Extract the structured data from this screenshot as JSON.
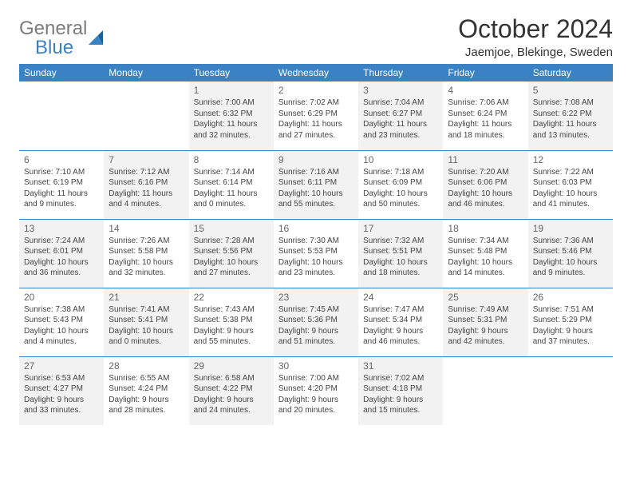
{
  "logo": {
    "general": "General",
    "blue": "Blue",
    "accent_color": "#3b82c4",
    "gray_color": "#7b7b7b"
  },
  "header": {
    "title": "October 2024",
    "location": "Jaemjoe, Blekinge, Sweden"
  },
  "colors": {
    "header_bg": "#3b82c4",
    "header_text": "#ffffff",
    "rule": "#3b82c4",
    "shaded_bg": "#f2f2f2",
    "body_text": "#444444",
    "daynum_text": "#666666"
  },
  "daysOfWeek": [
    "Sunday",
    "Monday",
    "Tuesday",
    "Wednesday",
    "Thursday",
    "Friday",
    "Saturday"
  ],
  "weeks": [
    [
      {
        "day": null
      },
      {
        "day": null
      },
      {
        "day": 1,
        "shaded": true,
        "sunrise": "7:00 AM",
        "sunset": "6:32 PM",
        "daylight": "11 hours and 32 minutes."
      },
      {
        "day": 2,
        "sunrise": "7:02 AM",
        "sunset": "6:29 PM",
        "daylight": "11 hours and 27 minutes."
      },
      {
        "day": 3,
        "shaded": true,
        "sunrise": "7:04 AM",
        "sunset": "6:27 PM",
        "daylight": "11 hours and 23 minutes."
      },
      {
        "day": 4,
        "sunrise": "7:06 AM",
        "sunset": "6:24 PM",
        "daylight": "11 hours and 18 minutes."
      },
      {
        "day": 5,
        "shaded": true,
        "sunrise": "7:08 AM",
        "sunset": "6:22 PM",
        "daylight": "11 hours and 13 minutes."
      }
    ],
    [
      {
        "day": 6,
        "sunrise": "7:10 AM",
        "sunset": "6:19 PM",
        "daylight": "11 hours and 9 minutes."
      },
      {
        "day": 7,
        "shaded": true,
        "sunrise": "7:12 AM",
        "sunset": "6:16 PM",
        "daylight": "11 hours and 4 minutes."
      },
      {
        "day": 8,
        "sunrise": "7:14 AM",
        "sunset": "6:14 PM",
        "daylight": "11 hours and 0 minutes."
      },
      {
        "day": 9,
        "shaded": true,
        "sunrise": "7:16 AM",
        "sunset": "6:11 PM",
        "daylight": "10 hours and 55 minutes."
      },
      {
        "day": 10,
        "sunrise": "7:18 AM",
        "sunset": "6:09 PM",
        "daylight": "10 hours and 50 minutes."
      },
      {
        "day": 11,
        "shaded": true,
        "sunrise": "7:20 AM",
        "sunset": "6:06 PM",
        "daylight": "10 hours and 46 minutes."
      },
      {
        "day": 12,
        "sunrise": "7:22 AM",
        "sunset": "6:03 PM",
        "daylight": "10 hours and 41 minutes."
      }
    ],
    [
      {
        "day": 13,
        "shaded": true,
        "sunrise": "7:24 AM",
        "sunset": "6:01 PM",
        "daylight": "10 hours and 36 minutes."
      },
      {
        "day": 14,
        "sunrise": "7:26 AM",
        "sunset": "5:58 PM",
        "daylight": "10 hours and 32 minutes."
      },
      {
        "day": 15,
        "shaded": true,
        "sunrise": "7:28 AM",
        "sunset": "5:56 PM",
        "daylight": "10 hours and 27 minutes."
      },
      {
        "day": 16,
        "sunrise": "7:30 AM",
        "sunset": "5:53 PM",
        "daylight": "10 hours and 23 minutes."
      },
      {
        "day": 17,
        "shaded": true,
        "sunrise": "7:32 AM",
        "sunset": "5:51 PM",
        "daylight": "10 hours and 18 minutes."
      },
      {
        "day": 18,
        "sunrise": "7:34 AM",
        "sunset": "5:48 PM",
        "daylight": "10 hours and 14 minutes."
      },
      {
        "day": 19,
        "shaded": true,
        "sunrise": "7:36 AM",
        "sunset": "5:46 PM",
        "daylight": "10 hours and 9 minutes."
      }
    ],
    [
      {
        "day": 20,
        "sunrise": "7:38 AM",
        "sunset": "5:43 PM",
        "daylight": "10 hours and 4 minutes."
      },
      {
        "day": 21,
        "shaded": true,
        "sunrise": "7:41 AM",
        "sunset": "5:41 PM",
        "daylight": "10 hours and 0 minutes."
      },
      {
        "day": 22,
        "sunrise": "7:43 AM",
        "sunset": "5:38 PM",
        "daylight": "9 hours and 55 minutes."
      },
      {
        "day": 23,
        "shaded": true,
        "sunrise": "7:45 AM",
        "sunset": "5:36 PM",
        "daylight": "9 hours and 51 minutes."
      },
      {
        "day": 24,
        "sunrise": "7:47 AM",
        "sunset": "5:34 PM",
        "daylight": "9 hours and 46 minutes."
      },
      {
        "day": 25,
        "shaded": true,
        "sunrise": "7:49 AM",
        "sunset": "5:31 PM",
        "daylight": "9 hours and 42 minutes."
      },
      {
        "day": 26,
        "sunrise": "7:51 AM",
        "sunset": "5:29 PM",
        "daylight": "9 hours and 37 minutes."
      }
    ],
    [
      {
        "day": 27,
        "shaded": true,
        "sunrise": "6:53 AM",
        "sunset": "4:27 PM",
        "daylight": "9 hours and 33 minutes."
      },
      {
        "day": 28,
        "sunrise": "6:55 AM",
        "sunset": "4:24 PM",
        "daylight": "9 hours and 28 minutes."
      },
      {
        "day": 29,
        "shaded": true,
        "sunrise": "6:58 AM",
        "sunset": "4:22 PM",
        "daylight": "9 hours and 24 minutes."
      },
      {
        "day": 30,
        "sunrise": "7:00 AM",
        "sunset": "4:20 PM",
        "daylight": "9 hours and 20 minutes."
      },
      {
        "day": 31,
        "shaded": true,
        "sunrise": "7:02 AM",
        "sunset": "4:18 PM",
        "daylight": "9 hours and 15 minutes."
      },
      {
        "day": null
      },
      {
        "day": null
      }
    ]
  ],
  "labels": {
    "sunrise": "Sunrise:",
    "sunset": "Sunset:",
    "daylight": "Daylight:"
  }
}
